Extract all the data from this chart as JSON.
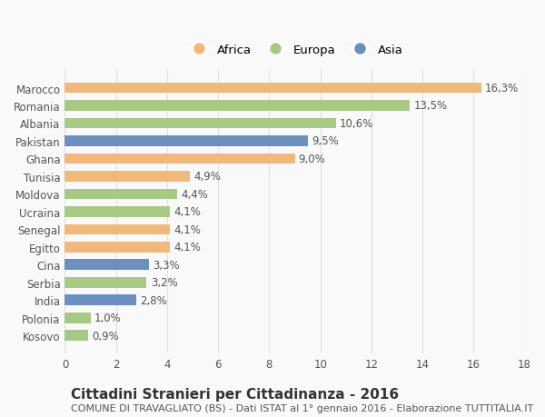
{
  "categories": [
    "Kosovo",
    "Polonia",
    "India",
    "Serbia",
    "Cina",
    "Egitto",
    "Senegal",
    "Ucraina",
    "Moldova",
    "Tunisia",
    "Ghana",
    "Pakistan",
    "Albania",
    "Romania",
    "Marocco"
  ],
  "values": [
    0.9,
    1.0,
    2.8,
    3.2,
    3.3,
    4.1,
    4.1,
    4.1,
    4.4,
    4.9,
    9.0,
    9.5,
    10.6,
    13.5,
    16.3
  ],
  "labels": [
    "0,9%",
    "1,0%",
    "2,8%",
    "3,2%",
    "3,3%",
    "4,1%",
    "4,1%",
    "4,1%",
    "4,4%",
    "4,9%",
    "9,0%",
    "9,5%",
    "10,6%",
    "13,5%",
    "16,3%"
  ],
  "colors": [
    "#a8c984",
    "#a8c984",
    "#6b8fbe",
    "#a8c984",
    "#6b8fbe",
    "#f0b87a",
    "#f0b87a",
    "#a8c984",
    "#a8c984",
    "#f0b87a",
    "#f0b87a",
    "#6b8fbe",
    "#a8c984",
    "#a8c984",
    "#f0b87a"
  ],
  "legend_labels": [
    "Africa",
    "Europa",
    "Asia"
  ],
  "legend_colors": [
    "#f0b87a",
    "#a8c984",
    "#6b8fbe"
  ],
  "title": "Cittadini Stranieri per Cittadinanza - 2016",
  "subtitle": "COMUNE DI TRAVAGLIATO (BS) - Dati ISTAT al 1° gennaio 2016 - Elaborazione TUTTITALIA.IT",
  "xlim": [
    0,
    18
  ],
  "xticks": [
    0,
    2,
    4,
    6,
    8,
    10,
    12,
    14,
    16,
    18
  ],
  "background_color": "#f9f9f9",
  "grid_color": "#e0e0e0",
  "bar_height": 0.6,
  "label_fontsize": 8.5,
  "tick_fontsize": 8.5,
  "title_fontsize": 11,
  "subtitle_fontsize": 8
}
